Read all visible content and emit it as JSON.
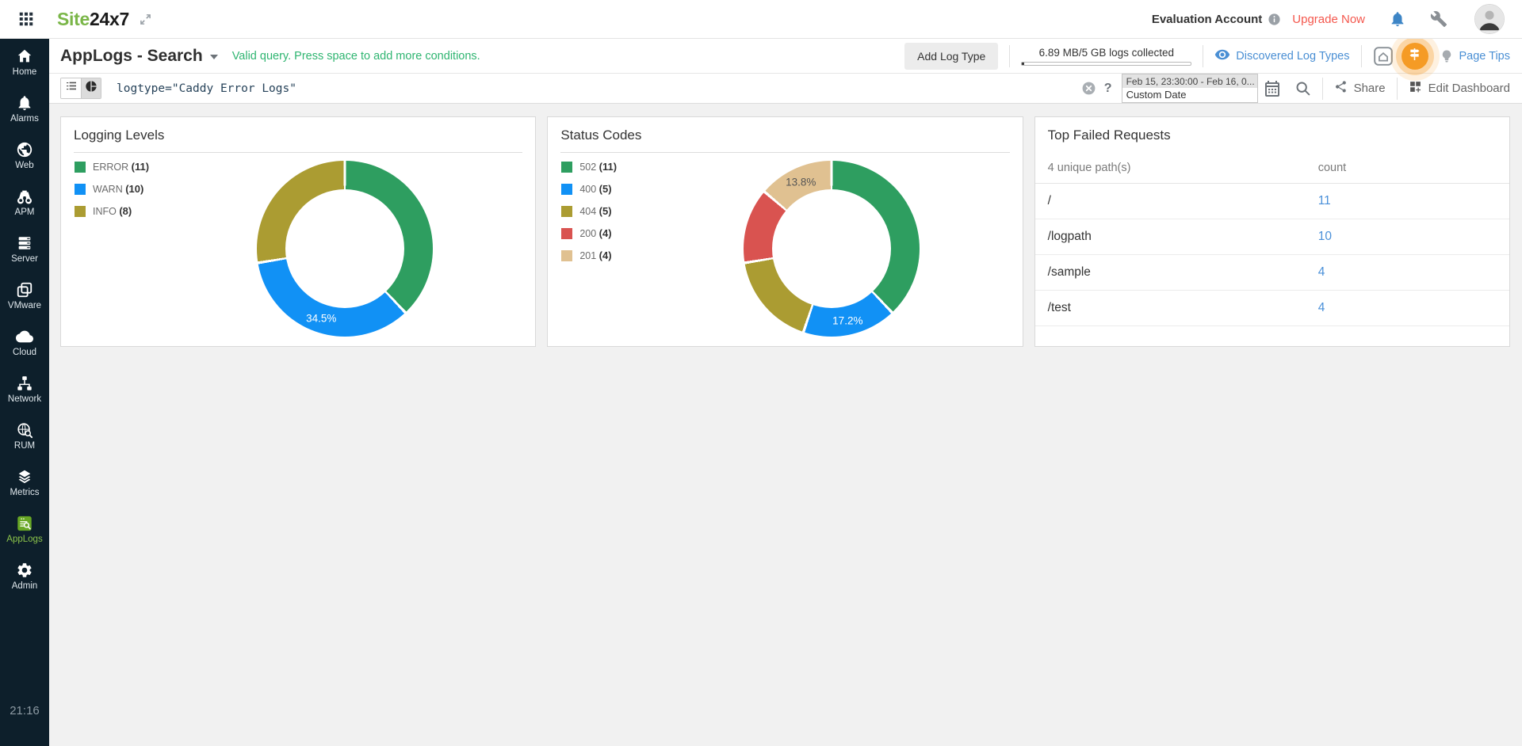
{
  "topbar": {
    "logo_part1": "Site",
    "logo_part2": "24x7",
    "account_label": "Evaluation Account",
    "upgrade_label": "Upgrade Now"
  },
  "header": {
    "title": "AppLogs - Search",
    "query_status": "Valid query. Press space to add more conditions.",
    "add_log_type_label": "Add Log Type",
    "usage_text": "6.89 MB/5 GB logs collected",
    "discovered_label": "Discovered Log Types",
    "page_tips_label": "Page Tips"
  },
  "querybar": {
    "query": "logtype=\"Caddy Error Logs\"",
    "help_label": "?",
    "date_range": "Feb 15, 23:30:00 - Feb 16, 0...",
    "date_mode": "Custom Date",
    "share_label": "Share",
    "edit_dashboard_label": "Edit Dashboard"
  },
  "sidebar": {
    "time": "21:16",
    "items": [
      {
        "label": "Home",
        "icon": "home-icon",
        "active": false
      },
      {
        "label": "Alarms",
        "icon": "alarms-icon",
        "active": false
      },
      {
        "label": "Web",
        "icon": "web-icon",
        "active": false
      },
      {
        "label": "APM",
        "icon": "apm-icon",
        "active": false
      },
      {
        "label": "Server",
        "icon": "server-icon",
        "active": false
      },
      {
        "label": "VMware",
        "icon": "vmware-icon",
        "active": false
      },
      {
        "label": "Cloud",
        "icon": "cloud-icon",
        "active": false
      },
      {
        "label": "Network",
        "icon": "network-icon",
        "active": false
      },
      {
        "label": "RUM",
        "icon": "rum-icon",
        "active": false
      },
      {
        "label": "Metrics",
        "icon": "metrics-icon",
        "active": false
      },
      {
        "label": "AppLogs",
        "icon": "applogs-icon",
        "active": true
      },
      {
        "label": "Admin",
        "icon": "admin-icon",
        "active": false
      }
    ]
  },
  "colors": {
    "brand_green": "#7ab648",
    "sidebar_bg": "#0d1f2b",
    "active_green": "#8bc34a",
    "link_blue": "#4a8fd4",
    "count_blue": "#4a90d9",
    "upgrade_red": "#f4574d",
    "valid_green": "#2fb571",
    "tour_orange": "#f59b25"
  },
  "chart_data": [
    {
      "type": "pie",
      "subtype": "donut",
      "title": "Logging Levels",
      "legend_position": "left",
      "total": 29,
      "series": [
        {
          "name": "ERROR",
          "value": 11,
          "color": "#2e9e60"
        },
        {
          "name": "WARN",
          "value": 10,
          "color": "#1191f5",
          "label": "34.5%",
          "label_color": "#ffffff"
        },
        {
          "name": "INFO",
          "value": 8,
          "color": "#ab9c32"
        }
      ]
    },
    {
      "type": "pie",
      "subtype": "donut",
      "title": "Status Codes",
      "legend_position": "left",
      "total": 29,
      "series": [
        {
          "name": "502",
          "value": 11,
          "color": "#2e9e60"
        },
        {
          "name": "400",
          "value": 5,
          "color": "#1191f5",
          "label": "17.2%",
          "label_color": "#ffffff"
        },
        {
          "name": "404",
          "value": 5,
          "color": "#ab9c32"
        },
        {
          "name": "200",
          "value": 4,
          "color": "#d95350"
        },
        {
          "name": "201",
          "value": 4,
          "color": "#e0c191",
          "label": "13.8%",
          "label_color": "#555555"
        }
      ]
    },
    {
      "type": "table",
      "title": "Top Failed Requests",
      "columns": [
        "4 unique path(s)",
        "count"
      ],
      "rows": [
        [
          "/",
          11
        ],
        [
          "/logpath",
          10
        ],
        [
          "/sample",
          4
        ],
        [
          "/test",
          4
        ]
      ]
    }
  ]
}
